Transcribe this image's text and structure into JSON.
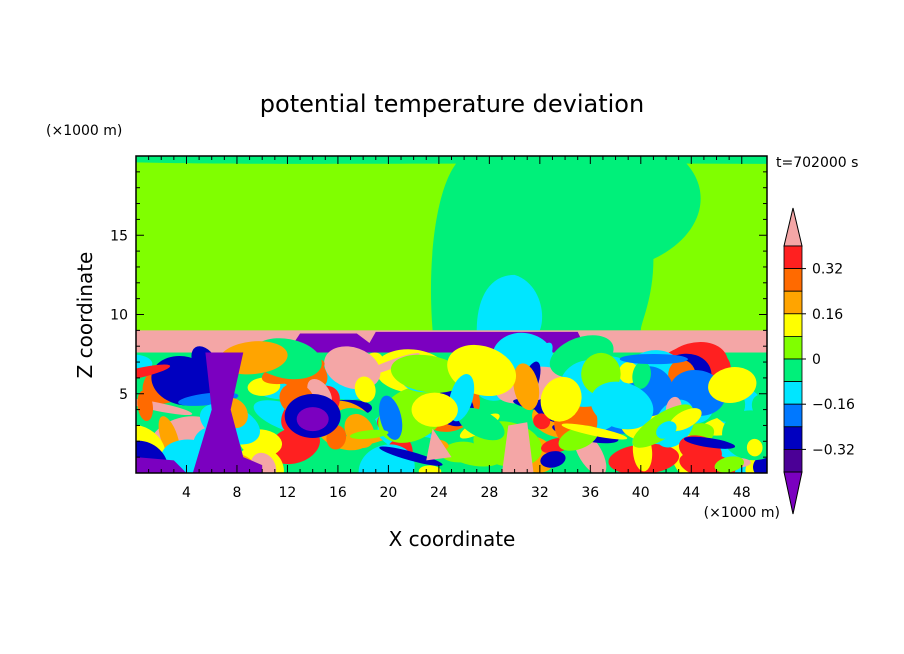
{
  "chart_data": {
    "type": "heatmap",
    "title": "potential temperature deviation",
    "xlabel": "X coordinate",
    "ylabel": "Z coordinate",
    "x_unit": "(×1000 m)",
    "y_unit": "(×1000 m)",
    "time_label": "t=702000 s",
    "xlim": [
      0,
      50
    ],
    "ylim": [
      0,
      20
    ],
    "x_ticks": [
      "4",
      "8",
      "12",
      "16",
      "20",
      "24",
      "28",
      "32",
      "36",
      "40",
      "44",
      "48"
    ],
    "y_ticks": [
      "5",
      "10",
      "15"
    ],
    "colorbar": {
      "levels": [
        -0.4,
        -0.32,
        -0.24,
        -0.16,
        -0.08,
        0,
        0.08,
        0.16,
        0.24,
        0.32,
        0.4
      ],
      "labels": [
        "0.32",
        "0.16",
        "0",
        "−0.16",
        "−0.32"
      ],
      "label_values": [
        0.32,
        0.16,
        0,
        -0.16,
        -0.32
      ],
      "colors_top_to_bottom": [
        "#f4a6a6",
        "#ff2020",
        "#ff6a00",
        "#ffa400",
        "#ffff00",
        "#80ff00",
        "#00f07a",
        "#00e6ff",
        "#0078ff",
        "#0000c0",
        "#4b0096",
        "#7b00c0"
      ]
    },
    "fields": {
      "upper_background": "#80ff00",
      "inversion_layer": "#f4a6a6",
      "inversion_layer_z": [
        7.6,
        9.0
      ]
    }
  }
}
